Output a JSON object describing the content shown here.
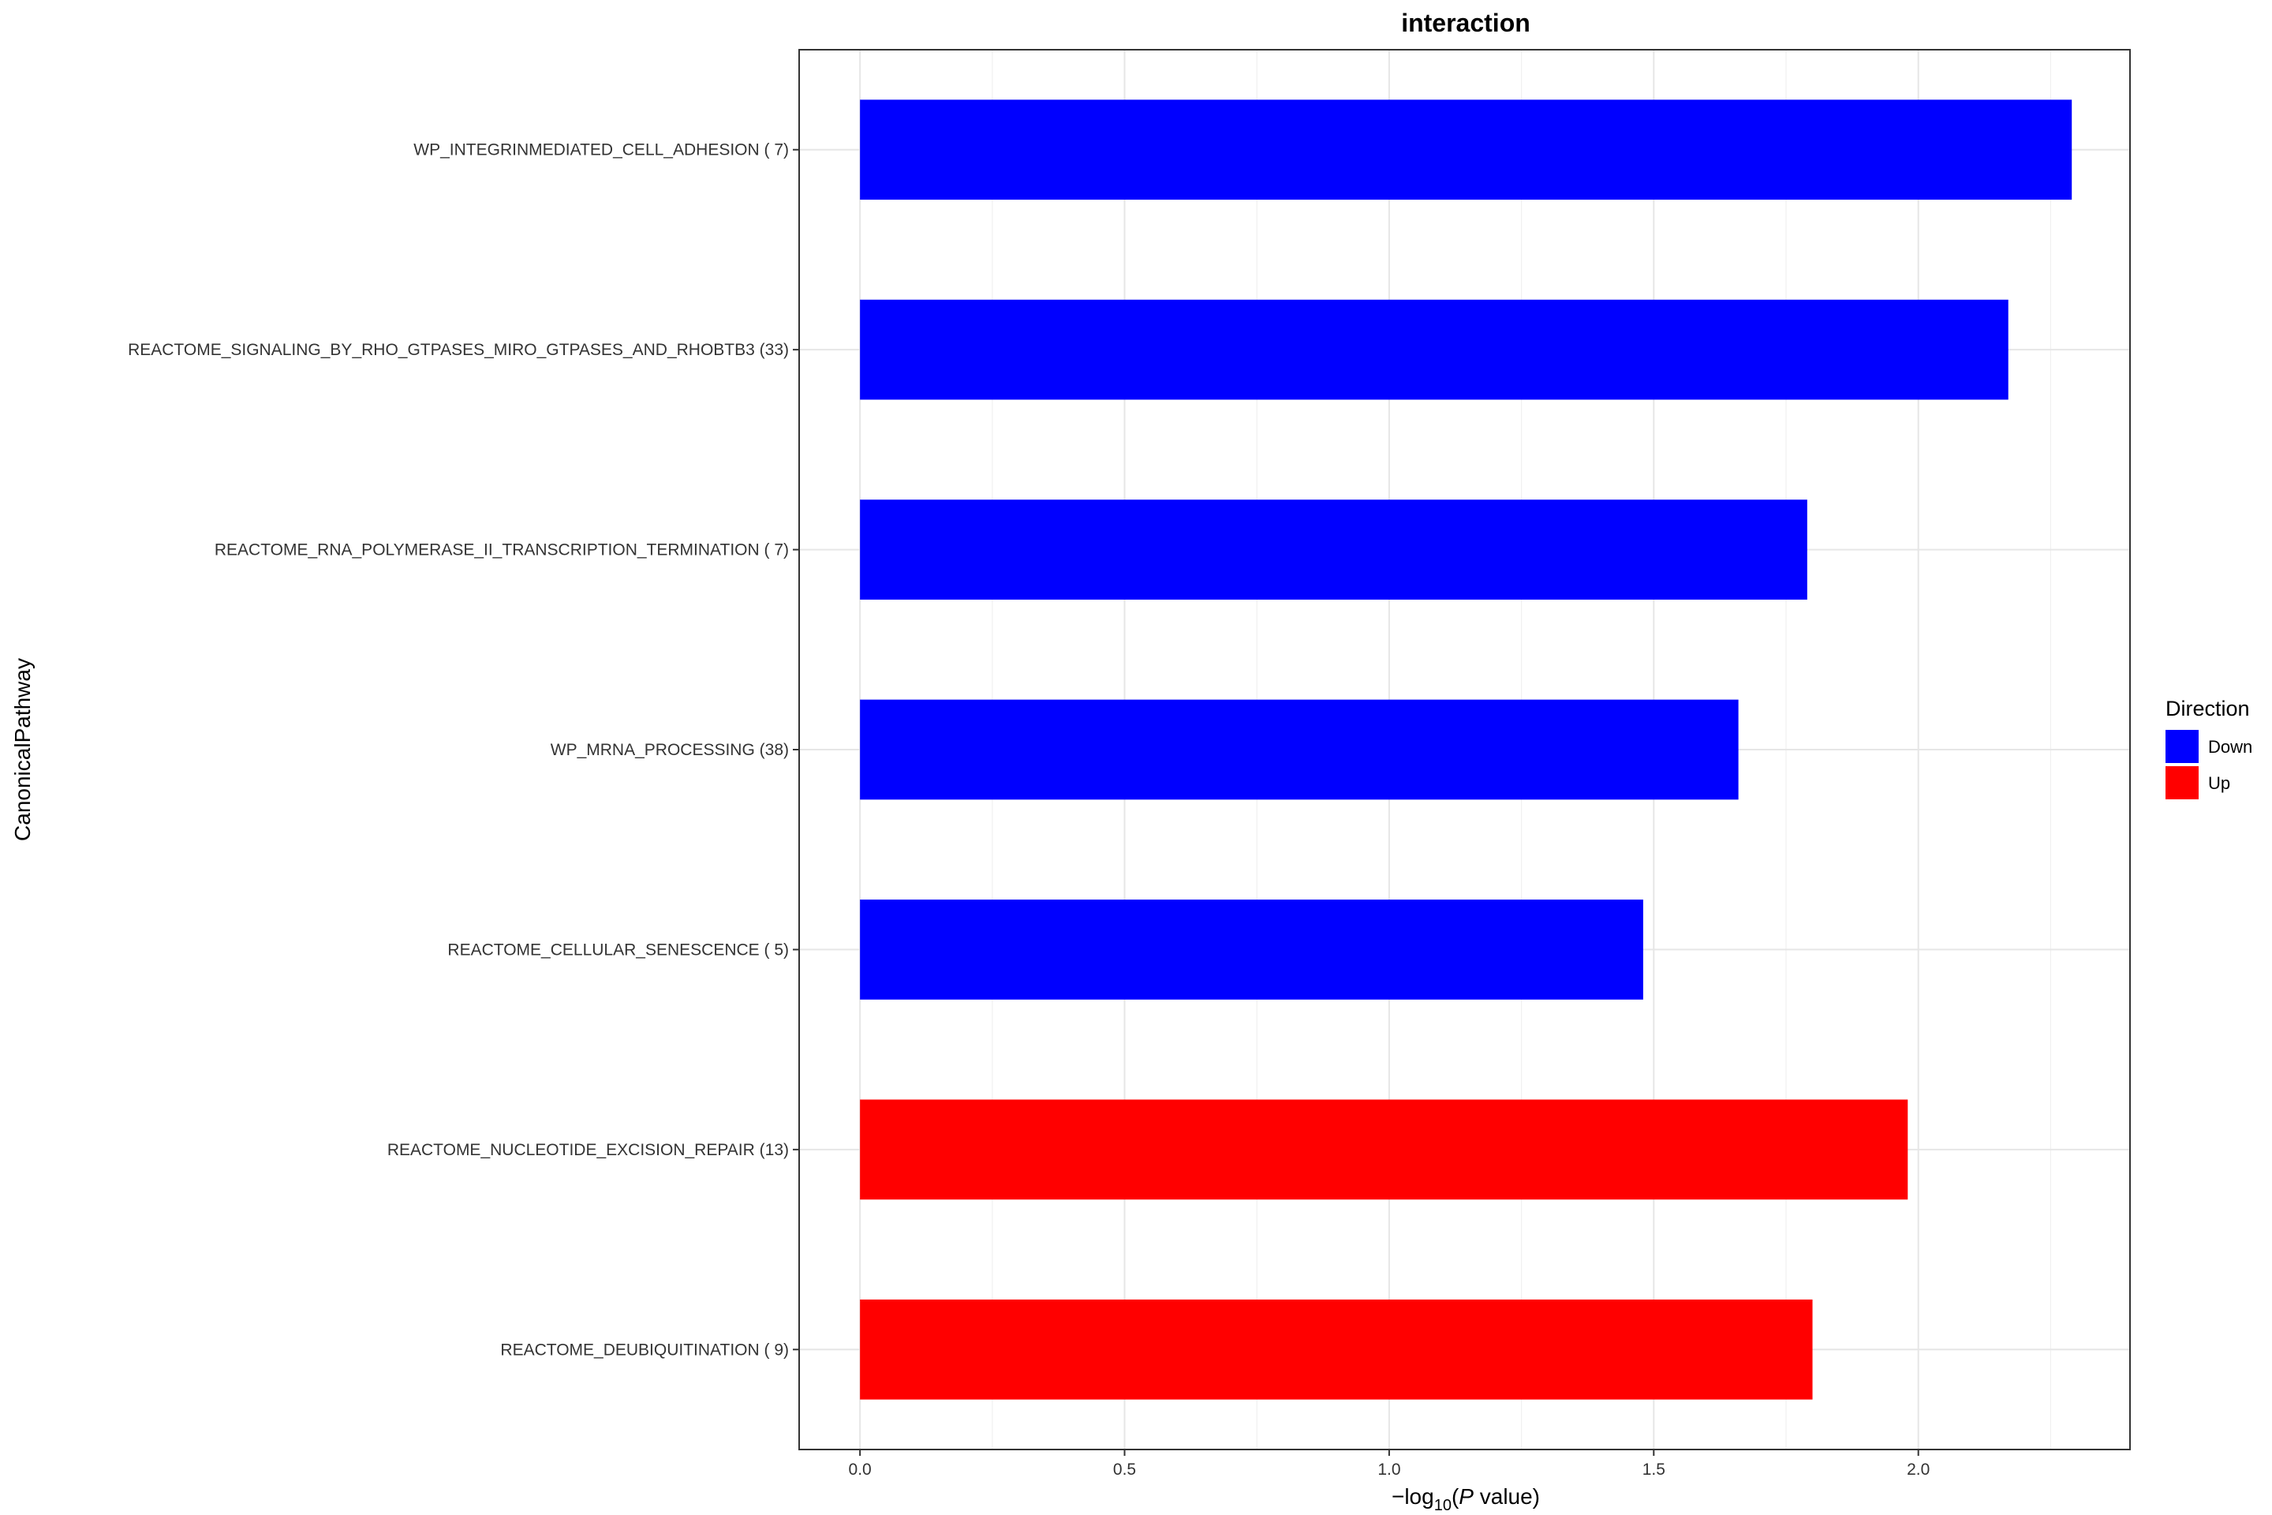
{
  "chart_data": {
    "type": "bar",
    "orientation": "horizontal",
    "title": "interaction",
    "xlabel": {
      "prefix": "−log",
      "sub": "10",
      "open": "(",
      "var": "P",
      "rest": " value)"
    },
    "ylabel": "CanonicalPathway",
    "xlim": [
      -0.115,
      2.4
    ],
    "xticks": [
      0.0,
      0.5,
      1.0,
      1.5,
      2.0
    ],
    "xtick_labels": [
      "0.0",
      "0.5",
      "1.0",
      "1.5",
      "2.0"
    ],
    "grid": true,
    "legend_position": "right",
    "legend": {
      "title": "Direction",
      "entries": [
        {
          "label": "Down",
          "color": "#0000FF"
        },
        {
          "label": "Up",
          "color": "#FF0000"
        }
      ]
    },
    "categories": [
      "WP_INTEGRINMEDIATED_CELL_ADHESION ( 7)",
      "REACTOME_SIGNALING_BY_RHO_GTPASES_MIRO_GTPASES_AND_RHOBTB3 (33)",
      "REACTOME_RNA_POLYMERASE_II_TRANSCRIPTION_TERMINATION ( 7)",
      "WP_MRNA_PROCESSING (38)",
      "REACTOME_CELLULAR_SENESCENCE ( 5)",
      "REACTOME_NUCLEOTIDE_EXCISION_REPAIR (13)",
      "REACTOME_DEUBIQUITINATION ( 9)"
    ],
    "values": [
      2.29,
      2.17,
      1.79,
      1.66,
      1.48,
      1.98,
      1.8
    ],
    "directions": [
      "Down",
      "Down",
      "Down",
      "Down",
      "Down",
      "Up",
      "Up"
    ]
  }
}
